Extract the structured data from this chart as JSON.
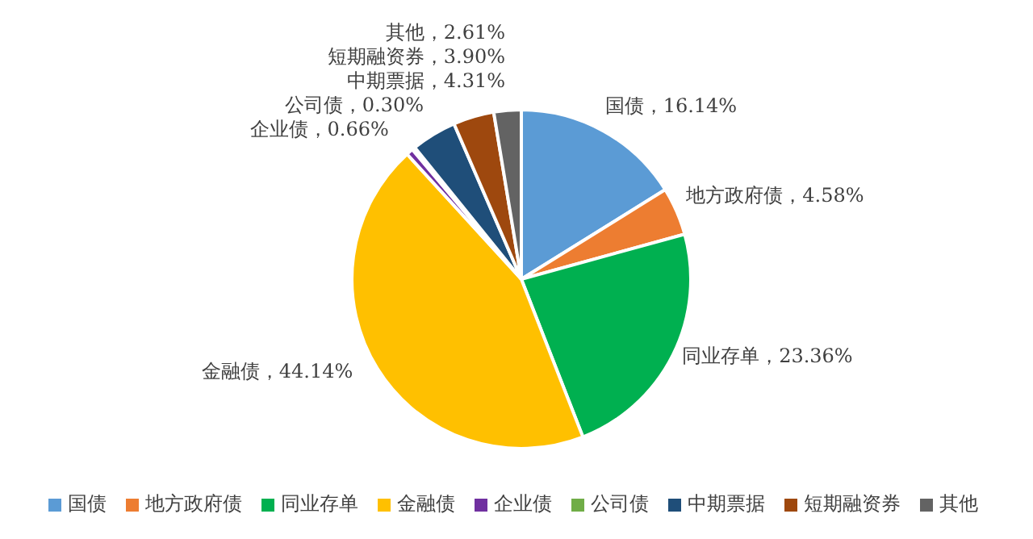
{
  "chart_data": {
    "type": "pie",
    "categories": [
      "国债",
      "地方政府债",
      "同业存单",
      "金融债",
      "企业债",
      "公司债",
      "中期票据",
      "短期融资券",
      "其他"
    ],
    "values": [
      16.14,
      4.58,
      23.36,
      44.14,
      0.66,
      0.3,
      4.31,
      3.9,
      2.61
    ],
    "value_labels": [
      "国债，16.14%",
      "地方政府债，4.58%",
      "同业存单，23.36%",
      "金融债，44.14%",
      "企业债，0.66%",
      "公司债，0.30%",
      "中期票据，4.31%",
      "短期融资券，3.90%",
      "其他，2.61%"
    ],
    "colors": [
      "#5b9bd5",
      "#ed7d31",
      "#00b050",
      "#ffc000",
      "#7030a0",
      "#70ad47",
      "#1f4e79",
      "#9e480e",
      "#636363"
    ],
    "legend": "bottom"
  }
}
